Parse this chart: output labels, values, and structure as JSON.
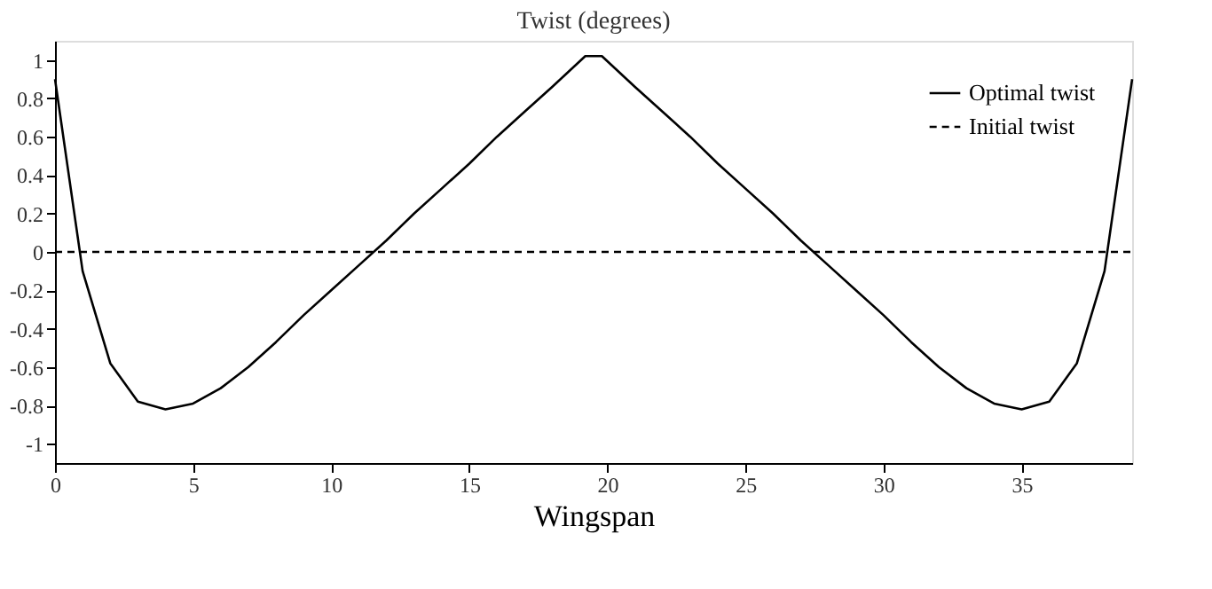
{
  "chart_data": {
    "type": "line",
    "title": "Twist (degrees)",
    "xlabel": "Wingspan",
    "xlim": [
      0,
      39
    ],
    "ylim": [
      -1.1,
      1.1
    ],
    "xticks": [
      0,
      5,
      10,
      15,
      20,
      25,
      30,
      35
    ],
    "yticks": [
      1,
      0.8,
      0.6,
      0.4,
      0.2,
      0,
      -0.2,
      -0.4,
      -0.6,
      -0.8,
      -1
    ],
    "grid": false,
    "legend": "top right",
    "marker": "none",
    "series": [
      {
        "name": "Optimal twist",
        "color": "#000000",
        "line_style": "solid",
        "x": [
          0,
          1,
          2,
          3,
          4,
          5,
          6,
          7,
          8,
          9,
          10,
          11,
          12,
          13,
          14,
          15,
          16,
          17,
          18,
          19.2,
          19.8,
          21,
          22,
          23,
          24,
          25,
          26,
          27,
          28,
          29,
          30,
          31,
          32,
          33,
          34,
          35,
          36,
          37,
          38,
          39
        ],
        "values": [
          0.9,
          -0.1,
          -0.58,
          -0.78,
          -0.82,
          -0.79,
          -0.71,
          -0.6,
          -0.47,
          -0.33,
          -0.2,
          -0.07,
          0.06,
          0.2,
          0.33,
          0.46,
          0.6,
          0.73,
          0.86,
          1.02,
          1.02,
          0.86,
          0.73,
          0.6,
          0.46,
          0.33,
          0.2,
          0.06,
          -0.07,
          -0.2,
          -0.33,
          -0.47,
          -0.6,
          -0.71,
          -0.79,
          -0.82,
          -0.78,
          -0.58,
          -0.1,
          0.9
        ]
      },
      {
        "name": "Initial twist",
        "color": "#000000",
        "line_style": "dashed",
        "x": [
          0,
          39
        ],
        "values": [
          0,
          0
        ]
      }
    ]
  }
}
